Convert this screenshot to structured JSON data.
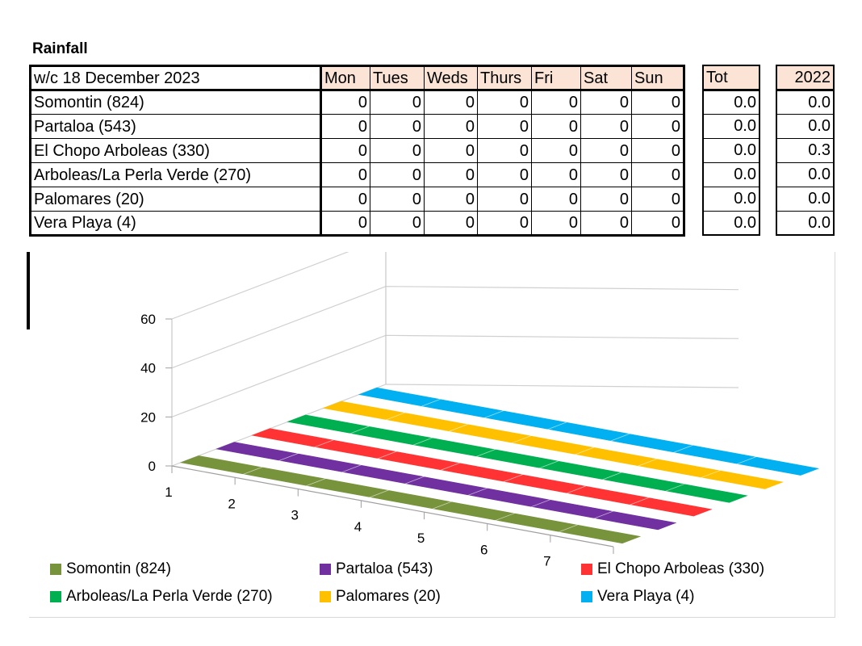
{
  "page_title": "Rainfall",
  "table": {
    "header_label": "w/c 18 December 2023",
    "days": [
      "Mon",
      "Tues",
      "Weds",
      "Thurs",
      "Fri",
      "Sat",
      "Sun"
    ],
    "tot_label": "Tot",
    "year_label": "2022",
    "rows": [
      {
        "place": "Somontin (824)",
        "values": [
          "0",
          "0",
          "0",
          "0",
          "0",
          "0",
          "0"
        ],
        "tot": "0.0",
        "y2022": "0.0"
      },
      {
        "place": "Partaloa (543)",
        "values": [
          "0",
          "0",
          "0",
          "0",
          "0",
          "0",
          "0"
        ],
        "tot": "0.0",
        "y2022": "0.0"
      },
      {
        "place": "El Chopo Arboleas (330)",
        "values": [
          "0",
          "0",
          "0",
          "0",
          "0",
          "0",
          "0"
        ],
        "tot": "0.0",
        "y2022": "0.3"
      },
      {
        "place": "Arboleas/La Perla Verde (270)",
        "values": [
          "0",
          "0",
          "0",
          "0",
          "0",
          "0",
          "0"
        ],
        "tot": "0.0",
        "y2022": "0.0"
      },
      {
        "place": "Palomares (20)",
        "values": [
          "0",
          "0",
          "0",
          "0",
          "0",
          "0",
          "0"
        ],
        "tot": "0.0",
        "y2022": "0.0"
      },
      {
        "place": "Vera Playa (4)",
        "values": [
          "0",
          "0",
          "0",
          "0",
          "0",
          "0",
          "0"
        ],
        "tot": "0.0",
        "y2022": "0.0"
      }
    ]
  },
  "chart_data": {
    "type": "bar",
    "style": "3d-column",
    "categories": [
      "1",
      "2",
      "3",
      "4",
      "5",
      "6",
      "7"
    ],
    "y_ticks": [
      "0",
      "20",
      "40",
      "60"
    ],
    "ylim": [
      0,
      60
    ],
    "grid": true,
    "legend_position": "bottom",
    "series": [
      {
        "name": "Somontin (824)",
        "color": "#77933c",
        "values": [
          0,
          0,
          0,
          0,
          0,
          0,
          0
        ]
      },
      {
        "name": "Partaloa (543)",
        "color": "#7030a0",
        "values": [
          0,
          0,
          0,
          0,
          0,
          0,
          0
        ]
      },
      {
        "name": "El Chopo Arboleas (330)",
        "color": "#ff3333",
        "values": [
          0,
          0,
          0,
          0,
          0,
          0,
          0
        ]
      },
      {
        "name": "Arboleas/La Perla Verde (270)",
        "color": "#00b050",
        "values": [
          0,
          0,
          0,
          0,
          0,
          0,
          0
        ]
      },
      {
        "name": "Palomares (20)",
        "color": "#ffc000",
        "values": [
          0,
          0,
          0,
          0,
          0,
          0,
          0
        ]
      },
      {
        "name": "Vera Playa (4)",
        "color": "#00b0f0",
        "values": [
          0,
          0,
          0,
          0,
          0,
          0,
          0
        ]
      }
    ]
  }
}
